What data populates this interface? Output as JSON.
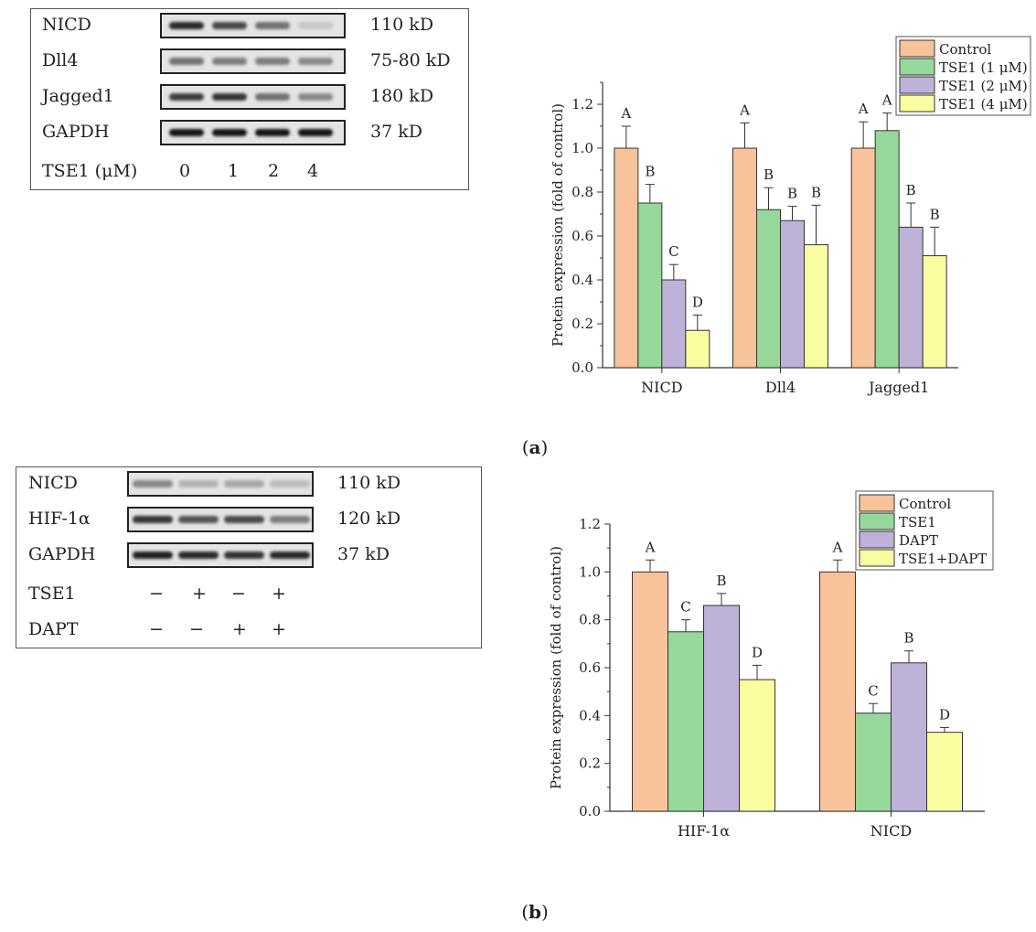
{
  "panel_a": {
    "caption_open": "(",
    "caption_letter": "a",
    "caption_close": ")",
    "blot": {
      "rows": [
        {
          "label": "NICD",
          "kd": "110 kD",
          "intensities": [
            0.9,
            0.75,
            0.55,
            0.15
          ]
        },
        {
          "label": "Dll4",
          "kd": "75-80 kD",
          "intensities": [
            0.55,
            0.5,
            0.5,
            0.45
          ]
        },
        {
          "label": "Jagged1",
          "kd": "180 kD",
          "intensities": [
            0.8,
            0.85,
            0.55,
            0.45
          ]
        },
        {
          "label": "GAPDH",
          "kd": "37 kD",
          "intensities": [
            1.0,
            1.0,
            1.0,
            1.0
          ]
        }
      ],
      "treatment_label": "TSE1 (μM)",
      "lanes": [
        "0",
        "1",
        "2",
        "4"
      ]
    }
  },
  "panel_b": {
    "caption_open": "(",
    "caption_letter": "b",
    "caption_close": ")",
    "blot": {
      "rows": [
        {
          "label": "NICD",
          "kd": "110 kD",
          "intensities": [
            0.45,
            0.25,
            0.3,
            0.2
          ]
        },
        {
          "label": "HIF-1α",
          "kd": "120 kD",
          "intensities": [
            0.85,
            0.7,
            0.75,
            0.5
          ]
        },
        {
          "label": "GAPDH",
          "kd": "37 kD",
          "intensities": [
            0.95,
            0.9,
            0.85,
            0.9
          ]
        }
      ],
      "treatments": [
        {
          "label": "TSE1",
          "marks": [
            "−",
            "+",
            "−",
            "+"
          ]
        },
        {
          "label": "DAPT",
          "marks": [
            "−",
            "−",
            "+",
            "+"
          ]
        }
      ]
    }
  },
  "colors": {
    "control": "#f8c39a",
    "tse1": "#96d89a",
    "dapt": "#bfb2d8",
    "combo": "#fafca0",
    "bar_stroke": "#333333"
  },
  "chart_data": [
    {
      "type": "bar",
      "title": "",
      "xlabel": "",
      "ylabel": "Protein expression (fold of control)",
      "ylim": [
        0,
        1.3
      ],
      "yticks": [
        "0.0",
        "0.2",
        "0.4",
        "0.6",
        "0.8",
        "1.0",
        "1.2"
      ],
      "categories": [
        "NICD",
        "Dll4",
        "Jagged1"
      ],
      "legend_position": "top-right",
      "series": [
        {
          "name": "Control",
          "color_key": "control",
          "values": [
            1.0,
            1.0,
            1.0
          ],
          "errors": [
            0.1,
            0.115,
            0.12
          ],
          "letters": [
            "A",
            "A",
            "A"
          ]
        },
        {
          "name": "TSE1 (1 μM)",
          "color_key": "tse1",
          "values": [
            0.75,
            0.72,
            1.08
          ],
          "errors": [
            0.085,
            0.1,
            0.08
          ],
          "letters": [
            "B",
            "B",
            "A"
          ]
        },
        {
          "name": "TSE1 (2 μM)",
          "color_key": "dapt",
          "values": [
            0.4,
            0.67,
            0.64
          ],
          "errors": [
            0.07,
            0.065,
            0.11
          ],
          "letters": [
            "C",
            "B",
            "B"
          ]
        },
        {
          "name": "TSE1 (4 μM)",
          "color_key": "combo",
          "values": [
            0.17,
            0.56,
            0.51
          ],
          "errors": [
            0.07,
            0.18,
            0.13
          ],
          "letters": [
            "D",
            "B",
            "B"
          ]
        }
      ]
    },
    {
      "type": "bar",
      "title": "",
      "xlabel": "",
      "ylabel": "Protein expression (fold of control)",
      "ylim": [
        0,
        1.2
      ],
      "yticks": [
        "0.0",
        "0.2",
        "0.4",
        "0.6",
        "0.8",
        "1.0",
        "1.2"
      ],
      "categories": [
        "HIF-1α",
        "NICD"
      ],
      "legend_position": "top-right",
      "series": [
        {
          "name": "Control",
          "color_key": "control",
          "values": [
            1.0,
            1.0
          ],
          "errors": [
            0.05,
            0.05
          ],
          "letters": [
            "A",
            "A"
          ]
        },
        {
          "name": "TSE1",
          "color_key": "tse1",
          "values": [
            0.75,
            0.41
          ],
          "errors": [
            0.05,
            0.04
          ],
          "letters": [
            "C",
            "C"
          ]
        },
        {
          "name": "DAPT",
          "color_key": "dapt",
          "values": [
            0.86,
            0.62
          ],
          "errors": [
            0.05,
            0.05
          ],
          "letters": [
            "B",
            "B"
          ]
        },
        {
          "name": "TSE1+DAPT",
          "color_key": "combo",
          "values": [
            0.55,
            0.33
          ],
          "errors": [
            0.06,
            0.02
          ],
          "letters": [
            "D",
            "D"
          ]
        }
      ]
    }
  ]
}
